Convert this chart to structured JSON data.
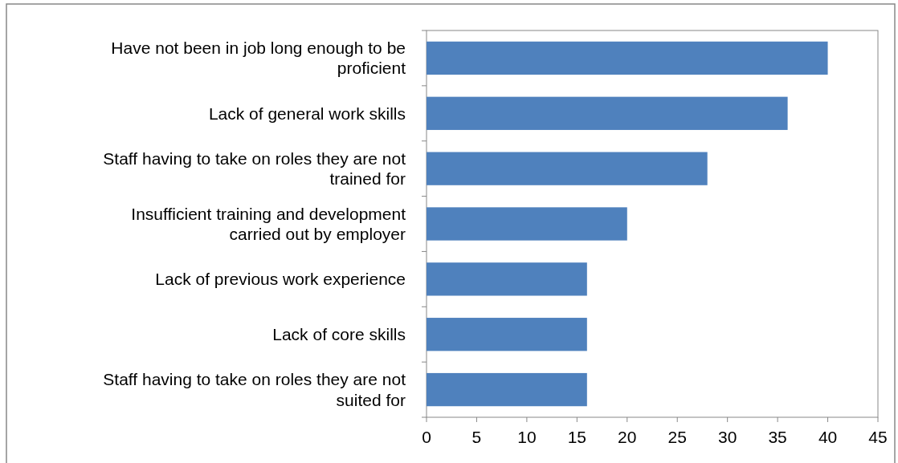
{
  "chart_data": {
    "type": "bar",
    "orientation": "horizontal",
    "categories": [
      "Have not been in job long enough to be proficient",
      "Lack of general work skills",
      "Staff having to take on roles they are not trained for",
      "Insufficient training and development carried out by employer",
      "Lack of previous work experience",
      "Lack of core skills",
      "Staff having to take on roles they are not suited for"
    ],
    "values": [
      40,
      36,
      28,
      20,
      16,
      16,
      16
    ],
    "color": "#4f81bd",
    "xlim": [
      0,
      45
    ],
    "xticks": [
      0,
      5,
      10,
      15,
      20,
      25,
      30,
      35,
      40,
      45
    ]
  }
}
